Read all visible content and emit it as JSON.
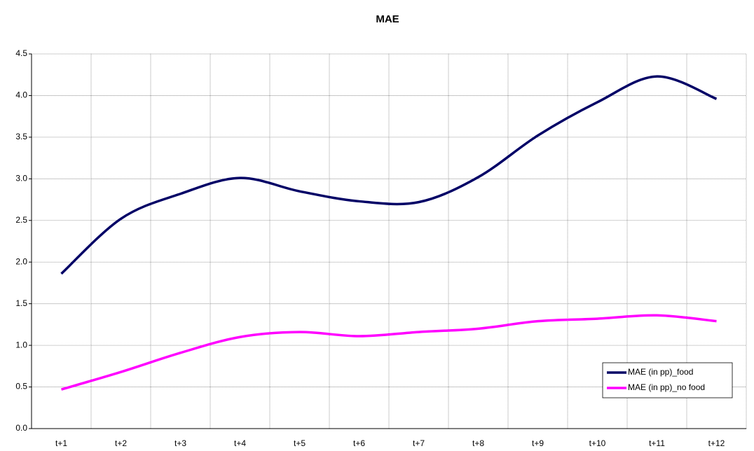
{
  "chart_data": {
    "type": "line",
    "title": "MAE",
    "categories": [
      "t+1",
      "t+2",
      "t+3",
      "t+4",
      "t+5",
      "t+6",
      "t+7",
      "t+8",
      "t+9",
      "t+10",
      "t+11",
      "t+12"
    ],
    "series": [
      {
        "name": "MAE (in pp)_food",
        "color": "#000066",
        "values": [
          1.86,
          2.52,
          2.82,
          3.01,
          2.85,
          2.73,
          2.72,
          3.02,
          3.52,
          3.92,
          4.23,
          3.96
        ]
      },
      {
        "name": "MAE (in pp)_no food",
        "color": "#ff00ff",
        "values": [
          0.47,
          0.68,
          0.91,
          1.1,
          1.16,
          1.11,
          1.16,
          1.2,
          1.29,
          1.32,
          1.36,
          1.29
        ]
      }
    ],
    "ylim": [
      0,
      4.5
    ],
    "yticks": [
      {
        "value": 0,
        "label": "0.0"
      },
      {
        "value": 0.5,
        "label": "0.5"
      },
      {
        "value": 1,
        "label": "1.0"
      },
      {
        "value": 1.5,
        "label": "1.5"
      },
      {
        "value": 2,
        "label": "2.0"
      },
      {
        "value": 2.5,
        "label": "2.5"
      },
      {
        "value": 3,
        "label": "3.0"
      },
      {
        "value": 3.5,
        "label": "3.5"
      },
      {
        "value": 4,
        "label": "4.0"
      },
      {
        "value": 4.5,
        "label": "4.5"
      }
    ],
    "grid": true,
    "legend": "lower right"
  }
}
